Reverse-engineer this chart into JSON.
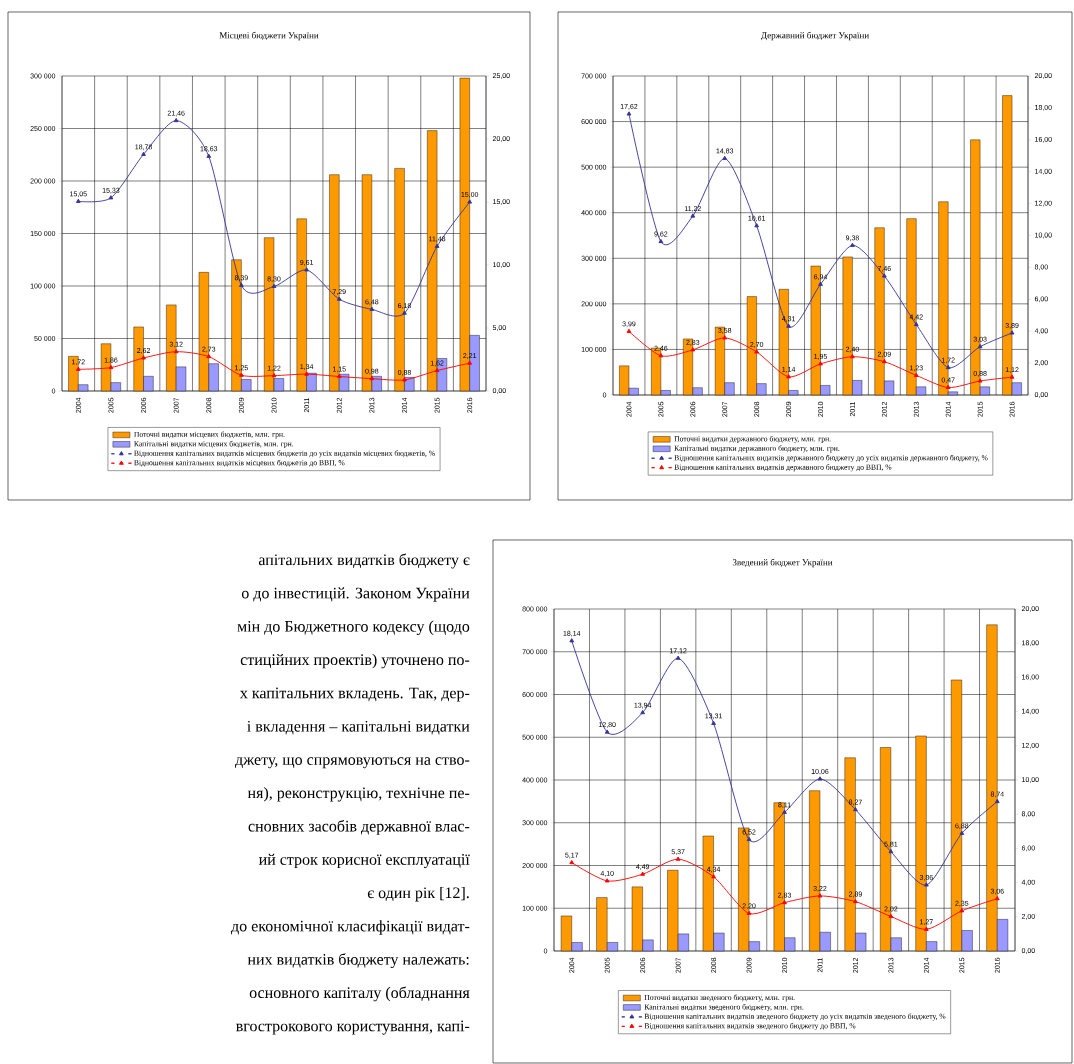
{
  "chart_data": [
    {
      "type": "bar",
      "title": "Місцеві бюджети України",
      "categories": [
        "2004",
        "2005",
        "2006",
        "2007",
        "2008",
        "2009",
        "2010",
        "2011",
        "2012",
        "2013",
        "2014",
        "2015",
        "2016"
      ],
      "series": [
        {
          "name": "Поточні видатки місцевих бюджетів, млн. грн.",
          "color": "#ff9900",
          "values": [
            33000,
            45000,
            61000,
            82000,
            113000,
            125000,
            146000,
            164000,
            206000,
            206000,
            212000,
            248000,
            298000
          ]
        },
        {
          "name": "Капітальні видатки місцевих бюджетів, млн. грн.",
          "color": "#9999ff",
          "values": [
            6000,
            8000,
            14000,
            23000,
            26000,
            11000,
            12000,
            17000,
            16000,
            14000,
            13000,
            31000,
            53000
          ]
        },
        {
          "name": "Відношення капітальних видатків місцевих бюджетів до усіх видатків місцевих бюджетів, %",
          "type": "line",
          "axis": "y2",
          "color": "#333399",
          "values": [
            15.05,
            15.33,
            18.78,
            21.46,
            18.63,
            8.39,
            8.3,
            9.61,
            7.29,
            6.48,
            6.18,
            11.48,
            15.0
          ],
          "value_labels": [
            "15,05",
            "15,33",
            "18,78",
            "21,46",
            "18,63",
            "8,39",
            "8,30",
            "9,61",
            "7,29",
            "6,48",
            "6,18",
            "11,48",
            "15,00"
          ]
        },
        {
          "name": "Відношення капітальних видатків місцевих бюджетів до ВВП, %",
          "type": "line",
          "axis": "y2",
          "color": "#ff0000",
          "values": [
            1.72,
            1.86,
            2.62,
            3.12,
            2.73,
            1.25,
            1.22,
            1.34,
            1.15,
            0.98,
            0.88,
            1.62,
            2.21
          ],
          "value_labels": [
            "1,72",
            "1,86",
            "2,62",
            "3,12",
            "2,73",
            "1,25",
            "1,22",
            "1,34",
            "1,15",
            "0,98",
            "0,88",
            "1,62",
            "2,21"
          ]
        }
      ],
      "ylim": [
        0,
        300000
      ],
      "yticks": [
        0,
        {
          "value": 50000,
          "label": "50 000"
        },
        {
          "value": 100000,
          "label": "100 000"
        },
        {
          "value": 150000,
          "label": "150 000"
        },
        {
          "value": 200000,
          "label": "200 000"
        },
        {
          "value": 250000,
          "label": "250 000"
        },
        {
          "value": 300000,
          "label": "300 000"
        }
      ],
      "y2lim": [
        0,
        25
      ],
      "y2ticks": [
        {
          "value": 0,
          "label": "0,00"
        },
        {
          "value": 5,
          "label": "5,00"
        },
        {
          "value": 10,
          "label": "10,00"
        },
        {
          "value": 15,
          "label": "15,00"
        },
        {
          "value": 20,
          "label": "20,00"
        },
        {
          "value": 25,
          "label": "25,00"
        }
      ],
      "grid": true,
      "legend": "bottom",
      "marker": "triangle"
    },
    {
      "type": "bar",
      "title": "Державний бюджет України",
      "categories": [
        "2004",
        "2005",
        "2006",
        "2007",
        "2008",
        "2009",
        "2010",
        "2011",
        "2012",
        "2013",
        "2014",
        "2015",
        "2016"
      ],
      "series": [
        {
          "name": "Поточні видатки державного бюджету, млн. грн.",
          "color": "#ff9900",
          "values": [
            64000,
            103000,
            123000,
            149000,
            216000,
            232000,
            283000,
            303000,
            367000,
            387000,
            424000,
            560000,
            657000
          ]
        },
        {
          "name": "Капітальні видатки державного бюджету, млн. грн.",
          "color": "#9999ff",
          "values": [
            15000,
            10000,
            16000,
            27000,
            25000,
            10000,
            21000,
            32000,
            31000,
            18000,
            7000,
            18000,
            27000
          ]
        },
        {
          "name": "Відношення капітальних видатків державного бюджету до усіх видатків державного бюджету, %",
          "type": "line",
          "axis": "y2",
          "color": "#333399",
          "values": [
            17.62,
            9.62,
            11.22,
            14.83,
            10.61,
            4.31,
            6.94,
            9.38,
            7.46,
            4.42,
            1.72,
            3.03,
            3.89
          ],
          "value_labels": [
            "17,62",
            "9,62",
            "11,22",
            "14,83",
            "10,61",
            "4,31",
            "6,94",
            "9,38",
            "7,46",
            "4,42",
            "1,72",
            "3,03",
            "3,89"
          ]
        },
        {
          "name": "Відношення капітальних видатків державного бюджету до ВВП, %",
          "type": "line",
          "axis": "y2",
          "color": "#ff0000",
          "values": [
            3.99,
            2.46,
            2.83,
            3.58,
            2.7,
            1.14,
            1.95,
            2.4,
            2.09,
            1.23,
            0.47,
            0.88,
            1.12
          ],
          "value_labels": [
            "3,99",
            "2,46",
            "2,83",
            "3,58",
            "2,70",
            "1,14",
            "1,95",
            "2,40",
            "2,09",
            "1,23",
            "0,47",
            "0,88",
            "1,12"
          ]
        }
      ],
      "ylim": [
        0,
        700000
      ],
      "yticks": [
        0,
        {
          "value": 100000,
          "label": "100 000"
        },
        {
          "value": 200000,
          "label": "200 000"
        },
        {
          "value": 300000,
          "label": "300 000"
        },
        {
          "value": 400000,
          "label": "400 000"
        },
        {
          "value": 500000,
          "label": "500 000"
        },
        {
          "value": 600000,
          "label": "600 000"
        },
        {
          "value": 700000,
          "label": "700 000"
        }
      ],
      "y2lim": [
        0,
        20
      ],
      "y2ticks": [
        {
          "value": 0,
          "label": "0,00"
        },
        {
          "value": 2,
          "label": "2,00"
        },
        {
          "value": 4,
          "label": "4,00"
        },
        {
          "value": 6,
          "label": "6,00"
        },
        {
          "value": 8,
          "label": "8,00"
        },
        {
          "value": 10,
          "label": "10,00"
        },
        {
          "value": 12,
          "label": "12,00"
        },
        {
          "value": 14,
          "label": "14,00"
        },
        {
          "value": 16,
          "label": "16,00"
        },
        {
          "value": 18,
          "label": "18,00"
        },
        {
          "value": 20,
          "label": "20,00"
        }
      ],
      "grid": true,
      "legend": "bottom",
      "marker": "triangle"
    },
    {
      "type": "bar",
      "title": "Зведений бюджет України",
      "categories": [
        "2004",
        "2005",
        "2006",
        "2007",
        "2008",
        "2009",
        "2010",
        "2011",
        "2012",
        "2013",
        "2014",
        "2015",
        "2016"
      ],
      "series": [
        {
          "name": "Поточні видатки зведеного бюджету, млн. грн.",
          "color": "#ff9900",
          "values": [
            82000,
            125000,
            150000,
            189000,
            269000,
            288000,
            347000,
            375000,
            452000,
            476000,
            503000,
            634000,
            763000
          ]
        },
        {
          "name": "Капітальні видатки зведеного бюджету, млн. грн.",
          "color": "#9999ff",
          "values": [
            20000,
            20000,
            26000,
            40000,
            42000,
            22000,
            31000,
            44000,
            42000,
            31000,
            22000,
            48000,
            74000
          ]
        },
        {
          "name": "Відношення капітальних видатків зведеного бюджету до усіх видатків зведеного бюджету, %",
          "type": "line",
          "axis": "y2",
          "color": "#333399",
          "values": [
            18.14,
            12.8,
            13.94,
            17.12,
            13.31,
            6.52,
            8.11,
            10.06,
            8.27,
            5.81,
            3.86,
            6.88,
            8.74
          ],
          "value_labels": [
            "18,14",
            "12,80",
            "13,94",
            "17,12",
            "13,31",
            "6,52",
            "8,11",
            "10,06",
            "8,27",
            "5,81",
            "3,86",
            "6,88",
            "8,74"
          ]
        },
        {
          "name": "Відношення капітальних видатків зведеного бюджету до ВВП, %",
          "type": "line",
          "axis": "y2",
          "color": "#ff0000",
          "values": [
            5.17,
            4.1,
            4.49,
            5.37,
            4.34,
            2.2,
            2.83,
            3.22,
            2.89,
            2.02,
            1.27,
            2.35,
            3.06
          ],
          "value_labels": [
            "5,17",
            "4,10",
            "4,49",
            "5,37",
            "4,34",
            "2,20",
            "2,83",
            "3,22",
            "2,89",
            "2,02",
            "1,27",
            "2,35",
            "3,06"
          ]
        }
      ],
      "ylim": [
        0,
        800000
      ],
      "yticks": [
        0,
        {
          "value": 100000,
          "label": "100 000"
        },
        {
          "value": 200000,
          "label": "200 000"
        },
        {
          "value": 300000,
          "label": "300 000"
        },
        {
          "value": 400000,
          "label": "400 000"
        },
        {
          "value": 500000,
          "label": "500 000"
        },
        {
          "value": 600000,
          "label": "600 000"
        },
        {
          "value": 700000,
          "label": "700 000"
        },
        {
          "value": 800000,
          "label": "800 000"
        }
      ],
      "y2lim": [
        0,
        20
      ],
      "y2ticks": [
        {
          "value": 0,
          "label": "0,00"
        },
        {
          "value": 2,
          "label": "2,00"
        },
        {
          "value": 4,
          "label": "4,00"
        },
        {
          "value": 6,
          "label": "6,00"
        },
        {
          "value": 8,
          "label": "8,00"
        },
        {
          "value": 10,
          "label": "10,00"
        },
        {
          "value": 12,
          "label": "12,00"
        },
        {
          "value": 14,
          "label": "14,00"
        },
        {
          "value": 16,
          "label": "16,00"
        },
        {
          "value": 18,
          "label": "18,00"
        },
        {
          "value": 20,
          "label": "20,00"
        }
      ],
      "grid": true,
      "legend": "bottom",
      "marker": "triangle"
    },
    {
      "type": "other",
      "annotations": [
        "апітальних видатків бюджету є",
        "о до інвестицій. Законом України",
        "мін до Бюджетного кодексу (щодо",
        "стиційних проектів) уточнено по-",
        "х капітальних вкладень. Так, дер-",
        "і вкладення – капітальні видатки",
        "джету, що спрямовуються на ство-",
        "ня), реконструкцію, технічне пе-",
        "сновних засобів державної влас-",
        "ий строк корисної експлуатації",
        "є один рік [12].",
        "до економічної класифікації видат-",
        "них видатків бюджету належать:",
        "основного капіталу (обладнання",
        "вгострокового користування, капі-"
      ]
    }
  ]
}
